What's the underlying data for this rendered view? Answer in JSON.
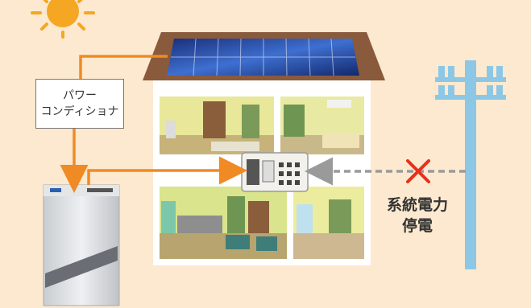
{
  "pcs_label": {
    "line1": "パワー",
    "line2": "コンディショナ"
  },
  "outage_label": {
    "line1": "系統電力",
    "line2": "停電"
  },
  "colors": {
    "background": "#fce9cf",
    "sun": "#f5a623",
    "arrow_orange": "#f08a24",
    "arrow_gray": "#9a9a9a",
    "cross": "#e8301c",
    "pole": "#8cc8e6",
    "roof": "#8a5a3c",
    "panel": "#1f3f8f",
    "house_wall": "#ffffff"
  }
}
